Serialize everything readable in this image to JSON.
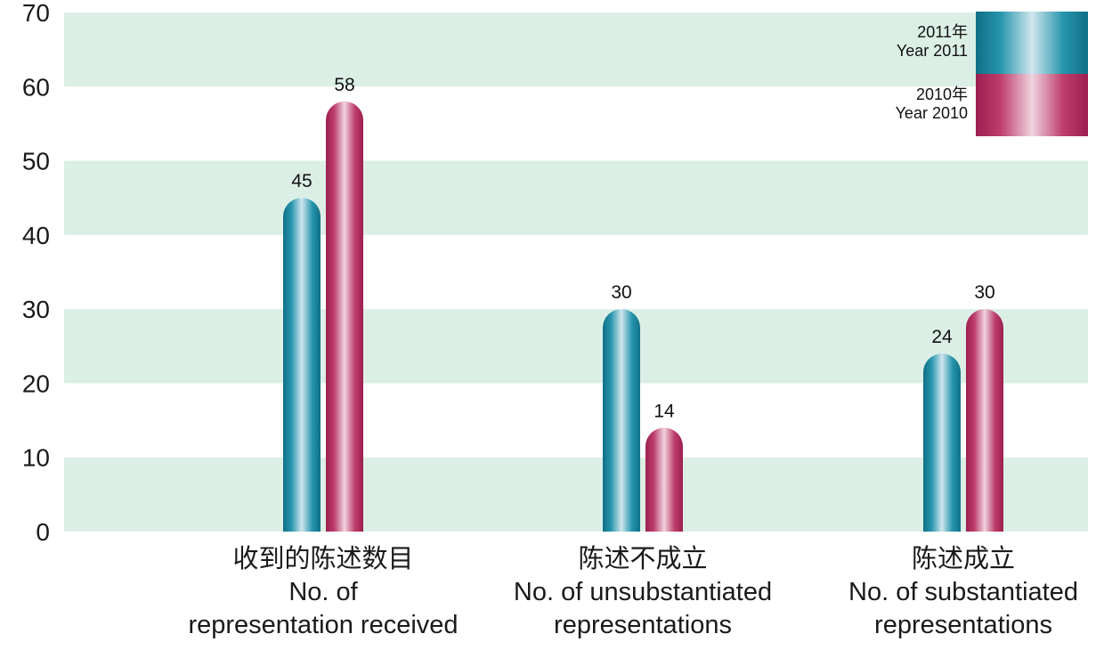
{
  "chart_data": {
    "type": "bar",
    "categories": [
      {
        "zh": "收到的陈述数目",
        "en": [
          "No. of",
          "representation received"
        ]
      },
      {
        "zh": "陈述不成立",
        "en": [
          "No. of unsubstantiated",
          "representations"
        ]
      },
      {
        "zh": "陈述成立",
        "en": [
          "No. of substantiated",
          "representations"
        ]
      }
    ],
    "series": [
      {
        "name_zh": "2011年",
        "name_en": "Year 2011",
        "values": [
          45,
          30,
          24
        ],
        "color": "#1a8aa3"
      },
      {
        "name_zh": "2010年",
        "name_en": "Year 2010",
        "values": [
          58,
          14,
          30
        ],
        "color": "#b3305f"
      }
    ],
    "ylim": [
      0,
      70
    ],
    "yticks": [
      "0",
      "10",
      "20",
      "30",
      "40",
      "50",
      "60",
      "70"
    ],
    "band_color": "#dcefe6",
    "legend_position": "top-right"
  }
}
